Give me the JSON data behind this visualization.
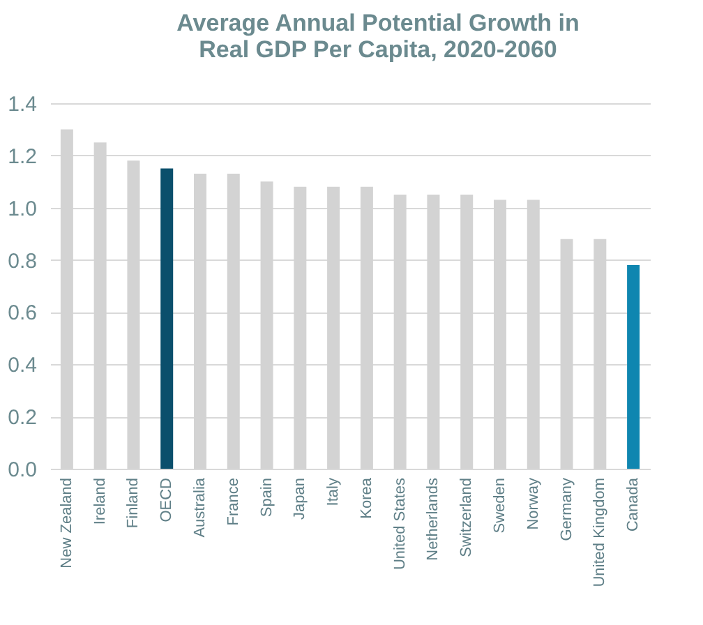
{
  "chart_data": {
    "type": "bar",
    "title": "Average Annual Potential Growth in Real GDP Per Capita, 2020-2060",
    "categories": [
      "New Zealand",
      "Ireland",
      "Finland",
      "OECD",
      "Australia",
      "France",
      "Spain",
      "Japan",
      "Italy",
      "Korea",
      "United States",
      "Netherlands",
      "Switzerland",
      "Sweden",
      "Norway",
      "Germany",
      "United Kingdom",
      "Canada"
    ],
    "values": [
      1.3,
      1.25,
      1.18,
      1.15,
      1.13,
      1.13,
      1.1,
      1.08,
      1.08,
      1.08,
      1.05,
      1.05,
      1.05,
      1.03,
      1.03,
      0.88,
      0.88,
      0.78
    ],
    "colors": [
      "#d3d3d3",
      "#d3d3d3",
      "#d3d3d3",
      "#0b4f6c",
      "#d3d3d3",
      "#d3d3d3",
      "#d3d3d3",
      "#d3d3d3",
      "#d3d3d3",
      "#d3d3d3",
      "#d3d3d3",
      "#d3d3d3",
      "#d3d3d3",
      "#d3d3d3",
      "#d3d3d3",
      "#d3d3d3",
      "#d3d3d3",
      "#0f86b0"
    ],
    "ylim": [
      0,
      1.4
    ],
    "yticks": [
      {
        "value": 0,
        "label": "0.0"
      },
      0.2,
      0.4,
      0.6,
      0.8,
      {
        "value": 1,
        "label": "1.0"
      },
      1.2,
      1.4
    ],
    "grid": "y"
  }
}
